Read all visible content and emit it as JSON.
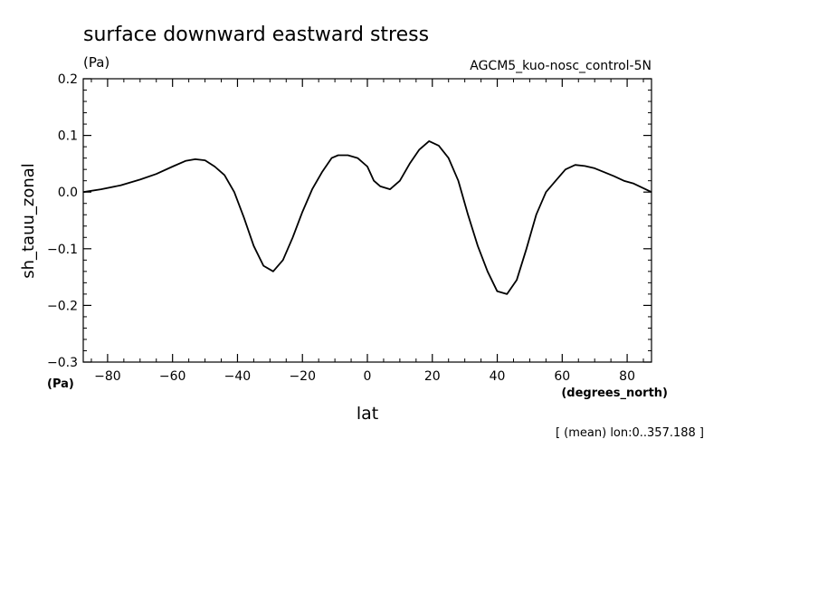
{
  "chart_data": {
    "type": "line",
    "title": "surface downward eastward stress",
    "units_label": "(Pa)",
    "experiment": "AGCM5_kuo-nosc_control-5N",
    "ylabel": "sh_tauu_zonal",
    "y_units_label": "(Pa)",
    "xlabel": "lat",
    "x_units_label": "(degrees_north)",
    "footnote": "[ (mean) lon:0..357.188 ]",
    "xlim": [
      -87.5,
      87.5
    ],
    "ylim": [
      -0.3,
      0.2
    ],
    "x_ticks": [
      -80,
      -60,
      -40,
      -20,
      0,
      20,
      40,
      60,
      80
    ],
    "x_tick_labels": [
      "−80",
      "−60",
      "−40",
      "−20",
      "0",
      "20",
      "40",
      "60",
      "80"
    ],
    "y_ticks": [
      -0.3,
      -0.2,
      -0.1,
      0.0,
      0.1,
      0.2
    ],
    "y_tick_labels": [
      "−0.3",
      "−0.2",
      "−0.1",
      "0.0",
      "0.1",
      "0.2"
    ],
    "grid": false,
    "series": [
      {
        "x": [
          -87.5,
          -82,
          -76,
          -70,
          -65,
          -60,
          -56,
          -53,
          -50,
          -47,
          -44,
          -41,
          -38,
          -35,
          -32,
          -29,
          -26,
          -23,
          -20,
          -17,
          -14,
          -11,
          -9,
          -6,
          -3,
          0,
          2,
          4,
          7,
          10,
          13,
          16,
          19,
          22,
          25,
          28,
          31,
          34,
          37,
          40,
          43,
          46,
          49,
          52,
          55,
          58,
          61,
          64,
          67,
          70,
          73,
          76,
          79,
          82,
          87.5
        ],
        "y": [
          0.0,
          0.005,
          0.012,
          0.022,
          0.032,
          0.045,
          0.055,
          0.058,
          0.056,
          0.045,
          0.03,
          0.0,
          -0.045,
          -0.095,
          -0.13,
          -0.14,
          -0.12,
          -0.08,
          -0.035,
          0.005,
          0.035,
          0.06,
          0.065,
          0.065,
          0.06,
          0.045,
          0.02,
          0.01,
          0.005,
          0.02,
          0.05,
          0.075,
          0.09,
          0.082,
          0.06,
          0.02,
          -0.04,
          -0.095,
          -0.14,
          -0.175,
          -0.18,
          -0.155,
          -0.1,
          -0.04,
          0.0,
          0.02,
          0.04,
          0.048,
          0.046,
          0.042,
          0.035,
          0.028,
          0.02,
          0.015,
          0.0
        ]
      }
    ]
  }
}
